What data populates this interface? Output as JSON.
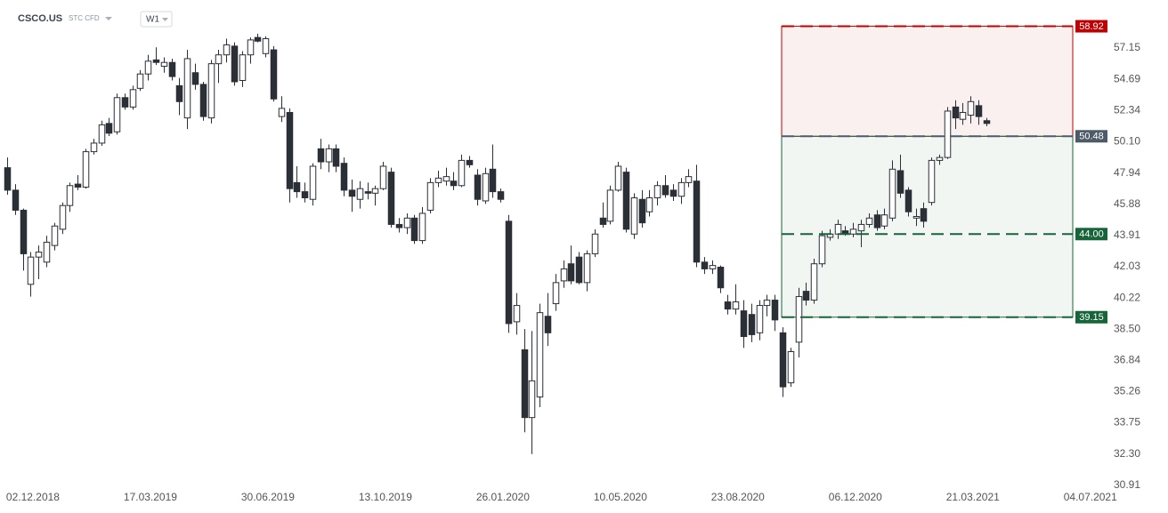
{
  "chart_data": {
    "type": "candlestick",
    "symbol": "CSCO.US",
    "instrument_type": "STC CFD",
    "timeframe": "W1",
    "log_scale": true,
    "up_color": "#ffffff",
    "down_color": "#2b2f36",
    "open": [
      48.3,
      46.8,
      45.5,
      41.0,
      42.6,
      42.3,
      43.3,
      44.3,
      45.8,
      47.2,
      47.0,
      49.4,
      50.0,
      51.4,
      50.8,
      53.3,
      52.6,
      54.0,
      55.1,
      56.2,
      55.7,
      56.0,
      54.2,
      51.8,
      55.2,
      54.3,
      51.8,
      55.9,
      56.6,
      57.3,
      54.6,
      56.6,
      58.0,
      56.7,
      57.0,
      51.9,
      52.2,
      47.3,
      46.7,
      46.2,
      49.6,
      48.7,
      49.6,
      48.6,
      46.8,
      46.2,
      46.7,
      46.6,
      46.9,
      48.0,
      44.6,
      44.4,
      45.0,
      43.6,
      45.5,
      47.3,
      47.4,
      47.4,
      47.1,
      48.8,
      47.8,
      46.1,
      48.2,
      46.7,
      44.8,
      38.9,
      37.4,
      34.0,
      35.0,
      39.2,
      39.9,
      41.2,
      42.2,
      42.6,
      41.1,
      42.8,
      45.0,
      44.8,
      46.8,
      48.0,
      44.0,
      46.2,
      45.4,
      46.3,
      47.1,
      46.8,
      46.4,
      47.3,
      47.4,
      42.3,
      41.9,
      42.0,
      40.0,
      39.6,
      39.5,
      39.3,
      38.3,
      39.8,
      40.1,
      38.3,
      35.7,
      37.8,
      40.6,
      40.1,
      42.2,
      43.8,
      44.0,
      44.2,
      44.0,
      44.2,
      44.6,
      45.2,
      44.5,
      45.0,
      48.1,
      46.8,
      45.0,
      45.6,
      46.0,
      48.8,
      49.0,
      52.6,
      51.7,
      52.0,
      52.7,
      51.6
    ],
    "high": [
      49.0,
      47.2,
      45.6,
      42.9,
      43.3,
      43.9,
      44.7,
      46.0,
      47.3,
      47.8,
      49.6,
      50.3,
      51.6,
      51.8,
      53.6,
      53.6,
      54.2,
      55.4,
      56.6,
      57.2,
      56.4,
      56.3,
      54.8,
      57.0,
      55.9,
      54.5,
      56.2,
      57.0,
      57.9,
      57.6,
      56.9,
      58.0,
      58.3,
      58.1,
      57.3,
      53.4,
      52.5,
      48.4,
      47.3,
      48.6,
      50.3,
      49.9,
      49.9,
      49.0,
      47.5,
      47.4,
      47.3,
      47.1,
      48.7,
      48.3,
      45.0,
      45.3,
      45.2,
      45.7,
      47.6,
      48.1,
      48.3,
      48.0,
      49.2,
      49.1,
      48.2,
      48.3,
      49.9,
      46.9,
      45.2,
      40.5,
      38.5,
      38.4,
      39.9,
      40.5,
      41.6,
      42.4,
      43.3,
      42.9,
      43.0,
      44.3,
      46.0,
      47.1,
      48.7,
      48.3,
      46.6,
      46.8,
      46.8,
      47.4,
      47.8,
      47.2,
      47.6,
      48.2,
      48.5,
      42.6,
      42.4,
      42.1,
      40.4,
      41.0,
      40.1,
      39.9,
      40.1,
      40.4,
      40.4,
      38.6,
      37.5,
      40.8,
      41.1,
      42.5,
      44.2,
      44.3,
      44.9,
      44.5,
      44.7,
      44.9,
      45.3,
      45.5,
      45.6,
      48.8,
      49.2,
      47.0,
      45.6,
      46.0,
      49.0,
      49.2,
      52.6,
      53.1,
      52.9,
      53.4,
      53.1,
      51.8
    ],
    "low": [
      46.5,
      45.2,
      41.8,
      40.3,
      41.3,
      42.0,
      43.0,
      44.0,
      45.4,
      46.8,
      46.9,
      49.2,
      49.8,
      50.5,
      50.6,
      52.4,
      52.4,
      53.8,
      54.6,
      55.8,
      55.2,
      54.6,
      52.0,
      51.0,
      53.9,
      51.6,
      51.4,
      54.4,
      56.0,
      54.2,
      54.1,
      55.9,
      57.6,
      56.4,
      53.0,
      51.5,
      46.0,
      46.3,
      46.0,
      45.8,
      48.2,
      48.0,
      48.0,
      46.4,
      45.4,
      45.6,
      46.2,
      45.8,
      46.8,
      44.4,
      44.1,
      44.0,
      43.4,
      43.4,
      45.3,
      47.0,
      47.1,
      46.8,
      47.0,
      48.3,
      45.8,
      45.9,
      46.3,
      46.0,
      38.3,
      38.2,
      33.3,
      32.3,
      34.5,
      37.6,
      39.5,
      40.8,
      41.0,
      41.0,
      40.6,
      42.6,
      44.4,
      44.6,
      46.7,
      44.1,
      43.7,
      44.4,
      45.1,
      45.8,
      46.3,
      46.1,
      45.9,
      47.0,
      42.0,
      41.6,
      41.6,
      40.5,
      39.3,
      39.3,
      37.5,
      37.8,
      37.9,
      39.2,
      38.4,
      35.0,
      35.5,
      37.0,
      39.8,
      39.9,
      42.0,
      43.6,
      43.7,
      43.9,
      43.8,
      43.2,
      44.4,
      44.2,
      44.3,
      44.8,
      46.3,
      45.1,
      44.5,
      44.4,
      45.8,
      48.5,
      48.9,
      51.0,
      51.3,
      51.4,
      51.3,
      51.2
    ],
    "close": [
      46.8,
      45.5,
      42.8,
      42.6,
      42.9,
      43.5,
      44.5,
      45.8,
      47.1,
      47.0,
      49.4,
      50.0,
      51.3,
      50.7,
      53.3,
      52.6,
      53.9,
      55.1,
      56.1,
      56.0,
      56.0,
      54.9,
      53.0,
      56.3,
      54.3,
      51.9,
      55.9,
      56.6,
      57.4,
      54.5,
      56.6,
      57.8,
      57.7,
      57.9,
      53.2,
      52.5,
      46.9,
      46.7,
      46.3,
      48.4,
      48.7,
      49.6,
      48.4,
      46.8,
      46.4,
      46.9,
      46.6,
      46.9,
      48.4,
      44.6,
      44.4,
      45.0,
      43.6,
      45.3,
      47.3,
      47.6,
      47.7,
      47.1,
      48.8,
      48.5,
      46.2,
      47.9,
      46.7,
      46.2,
      38.8,
      39.8,
      34.0,
      35.8,
      39.4,
      38.3,
      41.1,
      41.9,
      41.2,
      41.1,
      42.8,
      44.0,
      44.6,
      46.8,
      48.4,
      44.3,
      46.3,
      44.7,
      46.3,
      47.1,
      46.5,
      46.4,
      47.3,
      47.7,
      42.3,
      41.9,
      42.1,
      40.8,
      39.6,
      40.0,
      38.1,
      38.2,
      39.8,
      40.1,
      39.0,
      35.5,
      37.3,
      40.3,
      40.1,
      42.2,
      43.9,
      44.0,
      44.6,
      44.0,
      44.3,
      44.6,
      45.0,
      44.4,
      45.2,
      48.2,
      46.6,
      45.4,
      45.1,
      44.8,
      48.8,
      49.0,
      52.3,
      51.8,
      52.2,
      53.0,
      51.9,
      51.4
    ],
    "xlim": [
      -0.9,
      140.6
    ],
    "xticks": [
      {
        "value": 3.3,
        "label": "02.12.2018"
      },
      {
        "value": 18.3,
        "label": "17.03.2019"
      },
      {
        "value": 33.3,
        "label": "30.06.2019"
      },
      {
        "value": 48.3,
        "label": "13.10.2019"
      },
      {
        "value": 63.3,
        "label": "26.01.2020"
      },
      {
        "value": 78.3,
        "label": "10.05.2020"
      },
      {
        "value": 93.3,
        "label": "23.08.2020"
      },
      {
        "value": 108.3,
        "label": "06.12.2020"
      },
      {
        "value": 123.3,
        "label": "21.03.2021"
      },
      {
        "value": 138.3,
        "label": "04.07.2021"
      }
    ],
    "ylim": [
      30.83,
      60
    ],
    "yticks": [
      57.15,
      54.69,
      52.34,
      {
        "value": 50.1,
        "label": "50.10"
      },
      47.94,
      45.88,
      43.91,
      42.03,
      40.22,
      {
        "value": 38.5,
        "label": "38.50"
      },
      36.84,
      35.26,
      33.75,
      {
        "value": 32.3,
        "label": "32.30"
      },
      30.91
    ],
    "levels": [
      {
        "value": 58.92,
        "color": "#c00000"
      },
      {
        "value": 50.48,
        "color": "#4d5a68"
      },
      {
        "value": 44,
        "label": "44.00",
        "color": "#17643a"
      },
      {
        "value": 39.15,
        "color": "#17643a"
      }
    ]
  }
}
